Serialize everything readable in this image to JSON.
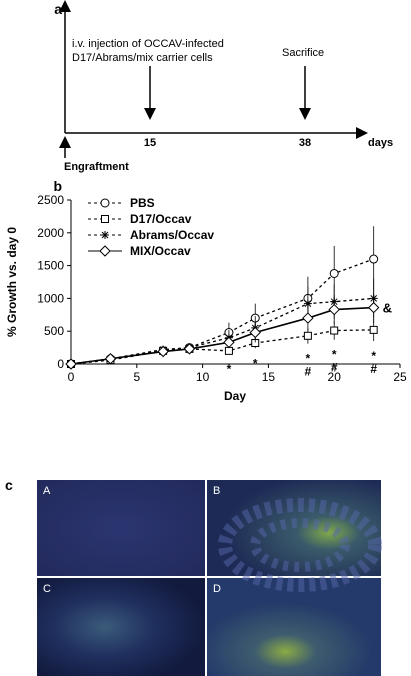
{
  "panels": [
    "a",
    "b",
    "c"
  ],
  "timeline": {
    "injection_lines": [
      "i.v. injection of OCCAV-infected",
      "D17/Abrams/mix carrier cells"
    ],
    "sacrifice": "Sacrifice",
    "ticks": [
      15,
      38
    ],
    "unit": "days",
    "start": "Engraftment"
  },
  "chart_data": {
    "type": "line",
    "x_label": "Day",
    "y_label": "% Growth vs. day 0",
    "x": [
      0,
      3,
      7,
      9,
      12,
      14,
      18,
      20,
      23
    ],
    "xlim": [
      0,
      25
    ],
    "xticks": [
      0,
      5,
      10,
      15,
      20,
      25
    ],
    "ylim": [
      0,
      2500
    ],
    "yticks": [
      0,
      500,
      1000,
      1500,
      2000,
      2500
    ],
    "series": [
      {
        "name": "PBS",
        "color": "#000000",
        "marker": "circle",
        "dashed": true,
        "values": [
          0,
          80,
          200,
          250,
          480,
          700,
          1000,
          1380,
          1600
        ],
        "errors": [
          0,
          30,
          60,
          60,
          150,
          220,
          330,
          420,
          500
        ]
      },
      {
        "name": "D17/Occav",
        "color": "#000000",
        "marker": "square",
        "dashed": true,
        "values": [
          0,
          60,
          200,
          230,
          200,
          320,
          430,
          510,
          520
        ],
        "errors": [
          0,
          20,
          50,
          50,
          50,
          80,
          120,
          140,
          170
        ]
      },
      {
        "name": "Abrams/Occav",
        "color": "#000000",
        "marker": "asterisk",
        "dashed": true,
        "values": [
          0,
          80,
          220,
          250,
          400,
          550,
          920,
          950,
          1000
        ],
        "errors": [
          0,
          30,
          60,
          60,
          120,
          180,
          260,
          260,
          300
        ]
      },
      {
        "name": "MIX/Occav",
        "color": "#000000",
        "marker": "diamond",
        "dashed": false,
        "values": [
          0,
          80,
          190,
          230,
          330,
          480,
          700,
          830,
          860
        ],
        "errors": [
          0,
          30,
          60,
          60,
          90,
          150,
          190,
          220,
          240
        ]
      }
    ],
    "annotations": [
      {
        "text": "*",
        "x": 12
      },
      {
        "text": "*",
        "x": 14
      },
      {
        "text": "*",
        "x": 18
      },
      {
        "text": "#",
        "x": 18
      },
      {
        "text": "*",
        "x": 20
      },
      {
        "text": "#",
        "x": 20
      },
      {
        "text": "*",
        "x": 23
      },
      {
        "text": "#",
        "x": 23
      }
    ],
    "mix_annotation": "&"
  },
  "images": [
    "A",
    "B",
    "C",
    "D"
  ]
}
